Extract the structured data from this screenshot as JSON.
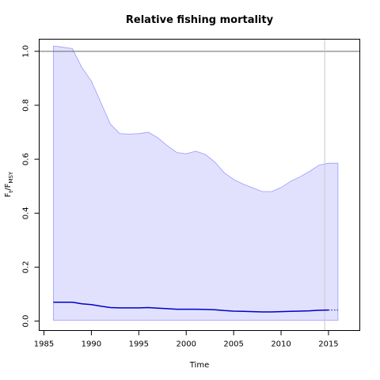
{
  "chart_data": {
    "type": "line",
    "title": "Relative fishing mortality",
    "xlabel": "Time",
    "ylabel": {
      "main": "F",
      "sub1": "t",
      "sep": "/F",
      "sub2": "MSY"
    },
    "xlim": [
      1984.5,
      2018.3
    ],
    "ylim": [
      -0.035,
      1.045
    ],
    "xticks": [
      1985,
      1990,
      1995,
      2000,
      2005,
      2010,
      2015
    ],
    "yticks": [
      0.0,
      0.2,
      0.4,
      0.6,
      0.8,
      1.0
    ],
    "reference_line": 1.0,
    "vertical_line": 2014.6,
    "colors": {
      "band_fill": "#e1e1fe",
      "band_edge": "#9a9aff",
      "median": "#0000cc",
      "refline": "#666666",
      "vline": "#c8c8c8"
    },
    "series": [
      {
        "role": "median",
        "x": [
          1986,
          1987,
          1988,
          1989,
          1990,
          1991,
          1992,
          1993,
          1994,
          1995,
          1996,
          1997,
          1998,
          1999,
          2000,
          2001,
          2002,
          2003,
          2004,
          2005,
          2006,
          2007,
          2008,
          2009,
          2010,
          2011,
          2012,
          2013,
          2014,
          2015
        ],
        "y": [
          0.07,
          0.07,
          0.07,
          0.064,
          0.061,
          0.055,
          0.05,
          0.049,
          0.049,
          0.049,
          0.05,
          0.048,
          0.046,
          0.044,
          0.044,
          0.044,
          0.043,
          0.042,
          0.039,
          0.037,
          0.036,
          0.035,
          0.034,
          0.034,
          0.035,
          0.036,
          0.037,
          0.038,
          0.04,
          0.041
        ]
      },
      {
        "role": "median-projection",
        "x": [
          2015,
          2016
        ],
        "y": [
          0.041,
          0.041
        ]
      },
      {
        "role": "upper-bound",
        "x": [
          1986,
          1987,
          1988,
          1989,
          1990,
          1991,
          1992,
          1993,
          1994,
          1995,
          1996,
          1997,
          1998,
          1999,
          2000,
          2001,
          2002,
          2003,
          2004,
          2005,
          2006,
          2007,
          2008,
          2009,
          2010,
          2011,
          2012,
          2013,
          2014,
          2015,
          2016
        ],
        "y": [
          1.02,
          1.015,
          1.01,
          0.94,
          0.89,
          0.81,
          0.73,
          0.695,
          0.693,
          0.695,
          0.7,
          0.68,
          0.65,
          0.625,
          0.62,
          0.63,
          0.618,
          0.59,
          0.55,
          0.525,
          0.508,
          0.494,
          0.48,
          0.48,
          0.495,
          0.518,
          0.535,
          0.555,
          0.578,
          0.585,
          0.585
        ]
      },
      {
        "role": "lower-bound",
        "x": [
          1986,
          2016
        ],
        "y": [
          0.003,
          0.003
        ]
      }
    ]
  }
}
